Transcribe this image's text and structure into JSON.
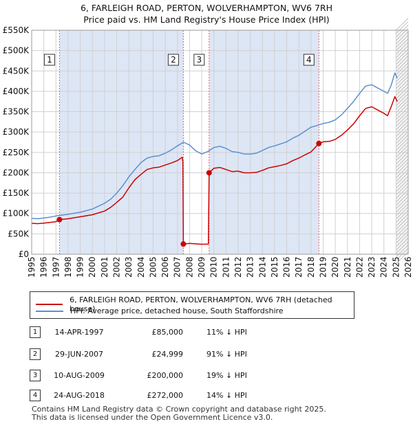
{
  "title_line1": "6, FARLEIGH ROAD, PERTON, WOLVERHAMPTON, WV6 7RH",
  "title_line2": "Price paid vs. HM Land Registry's House Price Index (HPI)",
  "colors": {
    "price": "#cc0000",
    "hpi": "#5b8fd0",
    "shade": "#dde6f5",
    "grid": "#d0d0d0",
    "marker_line": "#e06060"
  },
  "chart_data": {
    "type": "line",
    "title": "6, FARLEIGH ROAD, PERTON, WOLVERHAMPTON, WV6 7RH - Price paid vs. HM Land Registry's House Price Index (HPI)",
    "xlim": [
      1995,
      2026
    ],
    "ylim": [
      0,
      550000
    ],
    "x_ticks": [
      "1995",
      "1996",
      "1997",
      "1998",
      "1999",
      "2000",
      "2001",
      "2002",
      "2003",
      "2004",
      "2005",
      "2006",
      "2007",
      "2008",
      "2009",
      "2010",
      "2011",
      "2012",
      "2013",
      "2014",
      "2015",
      "2016",
      "2017",
      "2018",
      "2019",
      "2020",
      "2021",
      "2022",
      "2023",
      "2024",
      "2025",
      "2026"
    ],
    "y_ticks": [
      {
        "value": 0,
        "label": "£0"
      },
      {
        "value": 50000,
        "label": "£50K"
      },
      {
        "value": 100000,
        "label": "£100K"
      },
      {
        "value": 150000,
        "label": "£150K"
      },
      {
        "value": 200000,
        "label": "£200K"
      },
      {
        "value": 250000,
        "label": "£250K"
      },
      {
        "value": 300000,
        "label": "£300K"
      },
      {
        "value": 350000,
        "label": "£350K"
      },
      {
        "value": 400000,
        "label": "£400K"
      },
      {
        "value": 450000,
        "label": "£450K"
      },
      {
        "value": 500000,
        "label": "£500K"
      },
      {
        "value": 550000,
        "label": "£550K"
      }
    ],
    "shaded_regions": [
      [
        1997.29,
        2007.49
      ],
      [
        2009.61,
        2018.65
      ]
    ],
    "future_hatch_from": 2025.0,
    "series": [
      {
        "name": "6, FARLEIGH ROAD, PERTON, WOLVERHAMPTON, WV6 7RH (detached house)",
        "color": "#cc0000",
        "points": [
          [
            1995.0,
            76000
          ],
          [
            1995.5,
            75000
          ],
          [
            1996.0,
            76500
          ],
          [
            1996.5,
            78000
          ],
          [
            1997.0,
            80000
          ],
          [
            1997.29,
            85000
          ],
          [
            1998.0,
            87000
          ],
          [
            1999.0,
            92000
          ],
          [
            2000.0,
            97000
          ],
          [
            2001.0,
            106000
          ],
          [
            2001.5,
            115000
          ],
          [
            2002.0,
            127000
          ],
          [
            2002.5,
            140000
          ],
          [
            2003.0,
            163000
          ],
          [
            2003.5,
            183000
          ],
          [
            2004.0,
            196000
          ],
          [
            2004.5,
            208000
          ],
          [
            2005.0,
            212000
          ],
          [
            2005.5,
            214000
          ],
          [
            2006.0,
            219000
          ],
          [
            2006.5,
            224000
          ],
          [
            2007.0,
            230000
          ],
          [
            2007.4,
            238000
          ],
          [
            2007.45,
            227000
          ],
          [
            2007.49,
            24999
          ],
          [
            2008.0,
            26500
          ],
          [
            2008.5,
            25500
          ],
          [
            2009.0,
            24500
          ],
          [
            2009.55,
            25000
          ],
          [
            2009.61,
            200000
          ],
          [
            2010.0,
            211000
          ],
          [
            2010.5,
            213000
          ],
          [
            2011.0,
            208000
          ],
          [
            2011.5,
            203000
          ],
          [
            2012.0,
            204000
          ],
          [
            2012.5,
            200000
          ],
          [
            2013.0,
            200000
          ],
          [
            2013.5,
            201000
          ],
          [
            2014.0,
            206000
          ],
          [
            2014.5,
            212000
          ],
          [
            2015.0,
            215000
          ],
          [
            2015.5,
            218000
          ],
          [
            2016.0,
            222000
          ],
          [
            2016.5,
            230000
          ],
          [
            2017.0,
            236000
          ],
          [
            2017.5,
            244000
          ],
          [
            2018.0,
            251000
          ],
          [
            2018.65,
            272000
          ],
          [
            2019.0,
            276000
          ],
          [
            2019.5,
            277000
          ],
          [
            2020.0,
            282000
          ],
          [
            2020.5,
            292000
          ],
          [
            2021.0,
            305000
          ],
          [
            2021.5,
            320000
          ],
          [
            2022.0,
            340000
          ],
          [
            2022.5,
            358000
          ],
          [
            2023.0,
            362000
          ],
          [
            2023.5,
            354000
          ],
          [
            2024.0,
            346000
          ],
          [
            2024.3,
            340000
          ],
          [
            2024.6,
            362000
          ],
          [
            2024.9,
            387000
          ],
          [
            2025.1,
            375000
          ]
        ]
      },
      {
        "name": "HPI: Average price, detached house, South Staffordshire",
        "color": "#5b8fd0",
        "points": [
          [
            1995.0,
            88000
          ],
          [
            1995.5,
            87000
          ],
          [
            1996.0,
            89000
          ],
          [
            1996.5,
            91000
          ],
          [
            1997.0,
            94000
          ],
          [
            1998.0,
            98000
          ],
          [
            1999.0,
            103000
          ],
          [
            2000.0,
            111000
          ],
          [
            2001.0,
            125000
          ],
          [
            2001.5,
            135000
          ],
          [
            2002.0,
            150000
          ],
          [
            2002.5,
            168000
          ],
          [
            2003.0,
            190000
          ],
          [
            2003.5,
            208000
          ],
          [
            2004.0,
            225000
          ],
          [
            2004.5,
            236000
          ],
          [
            2005.0,
            240000
          ],
          [
            2005.5,
            242000
          ],
          [
            2006.0,
            248000
          ],
          [
            2006.5,
            256000
          ],
          [
            2007.0,
            266000
          ],
          [
            2007.5,
            275000
          ],
          [
            2008.0,
            268000
          ],
          [
            2008.5,
            254000
          ],
          [
            2009.0,
            246000
          ],
          [
            2009.5,
            252000
          ],
          [
            2010.0,
            262000
          ],
          [
            2010.5,
            265000
          ],
          [
            2011.0,
            260000
          ],
          [
            2011.5,
            252000
          ],
          [
            2012.0,
            250000
          ],
          [
            2012.5,
            246000
          ],
          [
            2013.0,
            246000
          ],
          [
            2013.5,
            248000
          ],
          [
            2014.0,
            255000
          ],
          [
            2014.5,
            262000
          ],
          [
            2015.0,
            266000
          ],
          [
            2015.5,
            271000
          ],
          [
            2016.0,
            276000
          ],
          [
            2016.5,
            285000
          ],
          [
            2017.0,
            292000
          ],
          [
            2017.5,
            302000
          ],
          [
            2018.0,
            312000
          ],
          [
            2018.5,
            316000
          ],
          [
            2019.0,
            321000
          ],
          [
            2019.5,
            324000
          ],
          [
            2020.0,
            330000
          ],
          [
            2020.5,
            342000
          ],
          [
            2021.0,
            358000
          ],
          [
            2021.5,
            375000
          ],
          [
            2022.0,
            395000
          ],
          [
            2022.5,
            413000
          ],
          [
            2023.0,
            416000
          ],
          [
            2023.5,
            408000
          ],
          [
            2024.0,
            400000
          ],
          [
            2024.3,
            395000
          ],
          [
            2024.6,
            415000
          ],
          [
            2024.9,
            445000
          ],
          [
            2025.1,
            432000
          ]
        ]
      }
    ],
    "markers": [
      {
        "label": "1",
        "x": 1997.29,
        "value": 85000
      },
      {
        "label": "2",
        "x": 2007.49,
        "value": 24999
      },
      {
        "label": "3",
        "x": 2009.61,
        "value": 200000
      },
      {
        "label": "4",
        "x": 2018.65,
        "value": 272000
      }
    ]
  },
  "legend": {
    "price_label": "6, FARLEIGH ROAD, PERTON, WOLVERHAMPTON, WV6 7RH (detached house)",
    "hpi_label": "HPI: Average price, detached house, South Staffordshire"
  },
  "transactions": [
    {
      "num": "1",
      "date": "14-APR-1997",
      "price": "£85,000",
      "hpi": "11% ↓ HPI"
    },
    {
      "num": "2",
      "date": "29-JUN-2007",
      "price": "£24,999",
      "hpi": "91% ↓ HPI"
    },
    {
      "num": "3",
      "date": "10-AUG-2009",
      "price": "£200,000",
      "hpi": "19% ↓ HPI"
    },
    {
      "num": "4",
      "date": "24-AUG-2018",
      "price": "£272,000",
      "hpi": "14% ↓ HPI"
    }
  ],
  "footer": {
    "line1": "Contains HM Land Registry data © Crown copyright and database right 2025.",
    "line2": "This data is licensed under the Open Government Licence v3.0."
  }
}
